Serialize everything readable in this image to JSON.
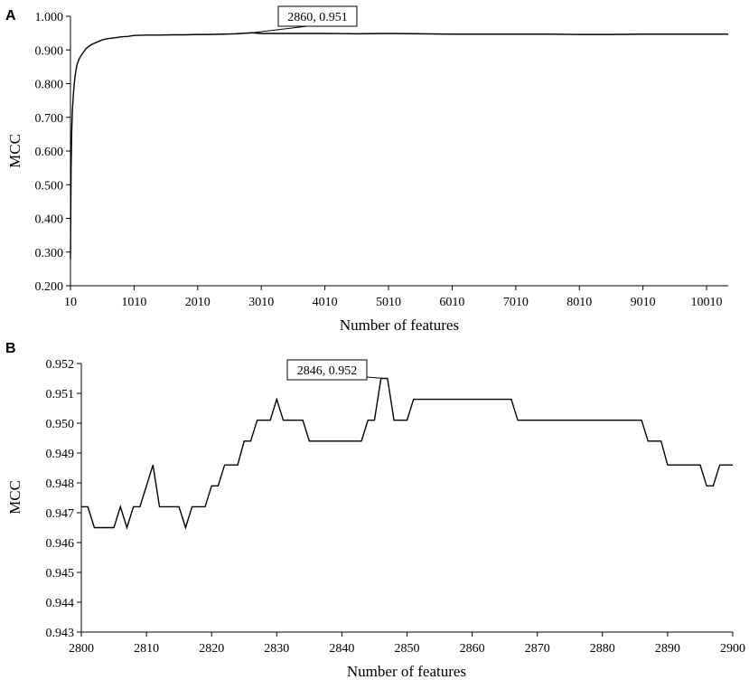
{
  "chart_data": [
    {
      "panel": "A",
      "type": "line",
      "xlabel": "Number of features",
      "ylabel": "MCC",
      "xlim": [
        10,
        10350
      ],
      "ylim": [
        0.2,
        1.0
      ],
      "xticks": [
        10,
        1010,
        2010,
        3010,
        4010,
        5010,
        6010,
        7010,
        8010,
        9010,
        10010
      ],
      "xtick_labels": [
        "10",
        "1010",
        "2010",
        "3010",
        "4010",
        "5010",
        "6010",
        "7010",
        "8010",
        "9010",
        "10010"
      ],
      "yticks": [
        0.2,
        0.3,
        0.4,
        0.5,
        0.6,
        0.7,
        0.8,
        0.9,
        1.0
      ],
      "ytick_labels": [
        "0.200",
        "0.300",
        "0.400",
        "0.500",
        "0.600",
        "0.700",
        "0.800",
        "0.900",
        "1.000"
      ],
      "grid": false,
      "series": [
        {
          "x": [
            10,
            15,
            20,
            30,
            40,
            60,
            80,
            110,
            150,
            200,
            260,
            330,
            410,
            510,
            610,
            710,
            810,
            910,
            1010,
            1210,
            1410,
            1610,
            1810,
            2010,
            2210,
            2410,
            2610,
            2860,
            3010,
            3510,
            4010,
            4510,
            5010,
            5510,
            6010,
            6510,
            7010,
            7510,
            8010,
            8510,
            9010,
            9510,
            10010,
            10350
          ],
          "y": [
            0.28,
            0.42,
            0.55,
            0.66,
            0.72,
            0.78,
            0.82,
            0.855,
            0.875,
            0.89,
            0.905,
            0.915,
            0.922,
            0.93,
            0.934,
            0.936,
            0.939,
            0.94,
            0.943,
            0.944,
            0.944,
            0.945,
            0.945,
            0.946,
            0.946,
            0.947,
            0.948,
            0.951,
            0.949,
            0.949,
            0.949,
            0.948,
            0.949,
            0.948,
            0.947,
            0.947,
            0.947,
            0.947,
            0.946,
            0.946,
            0.947,
            0.947,
            0.947,
            0.947
          ]
        }
      ],
      "annotation": {
        "text": "2860, 0.951",
        "x": 2860,
        "y": 0.951
      }
    },
    {
      "panel": "B",
      "type": "line",
      "xlabel": "Number of features",
      "ylabel": "MCC",
      "xlim": [
        2800,
        2900
      ],
      "ylim": [
        0.943,
        0.952
      ],
      "xticks": [
        2800,
        2810,
        2820,
        2830,
        2840,
        2850,
        2860,
        2870,
        2880,
        2890,
        2900
      ],
      "xtick_labels": [
        "2800",
        "2810",
        "2820",
        "2830",
        "2840",
        "2850",
        "2860",
        "2870",
        "2880",
        "2890",
        "2900"
      ],
      "yticks": [
        0.943,
        0.944,
        0.945,
        0.946,
        0.947,
        0.948,
        0.949,
        0.95,
        0.951,
        0.952
      ],
      "ytick_labels": [
        "0.943",
        "0.944",
        "0.945",
        "0.946",
        "0.947",
        "0.948",
        "0.949",
        "0.950",
        "0.951",
        "0.952"
      ],
      "grid": false,
      "series": [
        {
          "x": [
            2800,
            2801,
            2802,
            2803,
            2804,
            2805,
            2806,
            2807,
            2808,
            2809,
            2810,
            2811,
            2812,
            2813,
            2814,
            2815,
            2816,
            2817,
            2818,
            2819,
            2820,
            2821,
            2822,
            2823,
            2824,
            2825,
            2826,
            2827,
            2828,
            2829,
            2830,
            2831,
            2832,
            2833,
            2834,
            2835,
            2836,
            2837,
            2838,
            2839,
            2840,
            2841,
            2842,
            2843,
            2844,
            2845,
            2846,
            2847,
            2848,
            2849,
            2850,
            2851,
            2852,
            2853,
            2854,
            2855,
            2856,
            2857,
            2858,
            2859,
            2860,
            2861,
            2862,
            2863,
            2864,
            2865,
            2866,
            2867,
            2868,
            2869,
            2870,
            2871,
            2872,
            2873,
            2874,
            2875,
            2876,
            2877,
            2878,
            2879,
            2880,
            2881,
            2882,
            2883,
            2884,
            2885,
            2886,
            2887,
            2888,
            2889,
            2890,
            2891,
            2892,
            2893,
            2894,
            2895,
            2896,
            2897,
            2898,
            2899,
            2900
          ],
          "y": [
            0.9472,
            0.9472,
            0.9465,
            0.9465,
            0.9465,
            0.9465,
            0.9472,
            0.9465,
            0.9472,
            0.9472,
            0.9479,
            0.9486,
            0.9472,
            0.9472,
            0.9472,
            0.9472,
            0.9465,
            0.9472,
            0.9472,
            0.9472,
            0.9479,
            0.9479,
            0.9486,
            0.9486,
            0.9486,
            0.9494,
            0.9494,
            0.9501,
            0.9501,
            0.9501,
            0.9508,
            0.9501,
            0.9501,
            0.9501,
            0.9501,
            0.9494,
            0.9494,
            0.9494,
            0.9494,
            0.9494,
            0.9494,
            0.9494,
            0.9494,
            0.9494,
            0.9501,
            0.9501,
            0.9515,
            0.9515,
            0.9501,
            0.9501,
            0.9501,
            0.9508,
            0.9508,
            0.9508,
            0.9508,
            0.9508,
            0.9508,
            0.9508,
            0.9508,
            0.9508,
            0.9508,
            0.9508,
            0.9508,
            0.9508,
            0.9508,
            0.9508,
            0.9508,
            0.9501,
            0.9501,
            0.9501,
            0.9501,
            0.9501,
            0.9501,
            0.9501,
            0.9501,
            0.9501,
            0.9501,
            0.9501,
            0.9501,
            0.9501,
            0.9501,
            0.9501,
            0.9501,
            0.9501,
            0.9501,
            0.9501,
            0.9501,
            0.9494,
            0.9494,
            0.9494,
            0.9486,
            0.9486,
            0.9486,
            0.9486,
            0.9486,
            0.9486,
            0.9479,
            0.9479,
            0.9486,
            0.9486,
            0.9486
          ]
        }
      ],
      "annotation": {
        "text": "2846, 0.952",
        "x": 2846.5,
        "y": 0.9515
      }
    }
  ]
}
